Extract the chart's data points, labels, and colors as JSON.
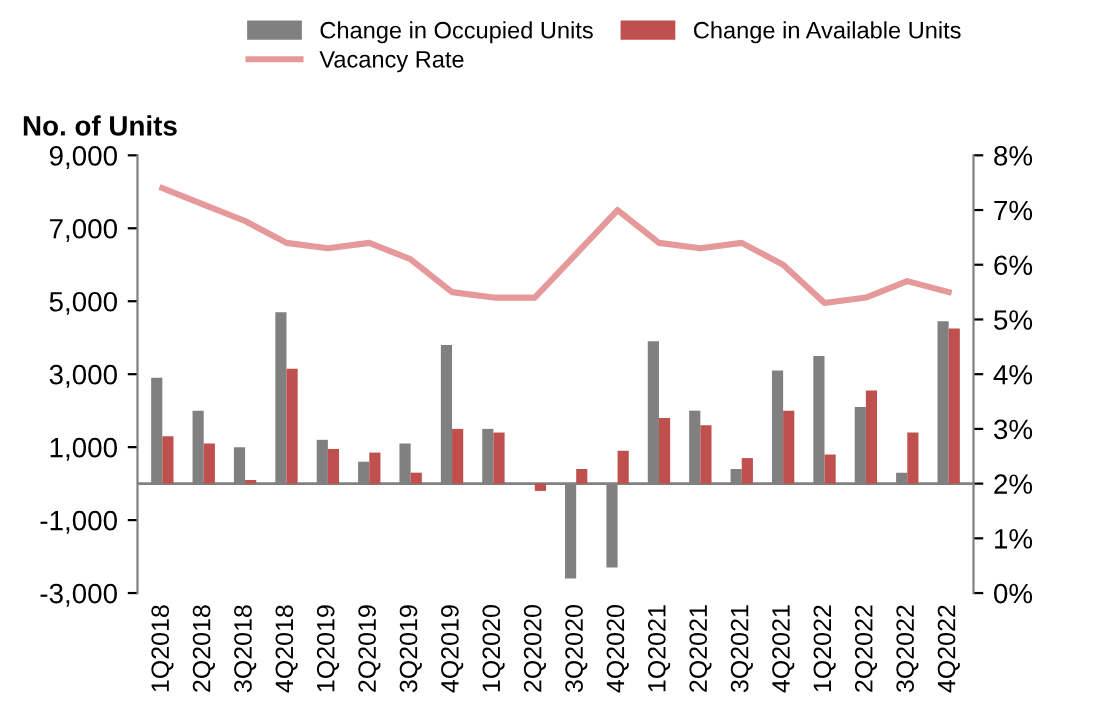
{
  "chart_data": {
    "type": "bar",
    "ylabel": "No. of Units",
    "categories": [
      "1Q2018",
      "2Q2018",
      "3Q2018",
      "4Q2018",
      "1Q2019",
      "2Q2019",
      "3Q2019",
      "4Q2019",
      "1Q2020",
      "2Q2020",
      "3Q2020",
      "4Q2020",
      "1Q2021",
      "2Q2021",
      "3Q2021",
      "4Q2021",
      "1Q2022",
      "2Q2022",
      "3Q2022",
      "4Q2022"
    ],
    "series": [
      {
        "name": "Change in Occupied Units",
        "color": "#808080",
        "values": [
          2900,
          2000,
          1000,
          4700,
          1200,
          600,
          1100,
          3800,
          1500,
          0,
          -2600,
          -2300,
          3900,
          2000,
          400,
          3100,
          3500,
          2100,
          300,
          4450
        ]
      },
      {
        "name": "Change in Available Units",
        "color": "#c0504d",
        "values": [
          1300,
          1100,
          100,
          3150,
          950,
          850,
          300,
          1500,
          1400,
          -200,
          400,
          900,
          1800,
          1600,
          700,
          2000,
          800,
          2550,
          1400,
          4250
        ]
      },
      {
        "name": "Vacancy Rate",
        "type": "line",
        "axis": "y2",
        "color": "#e6999a",
        "values": [
          7.4,
          7.1,
          6.8,
          6.4,
          6.3,
          6.4,
          6.1,
          5.5,
          5.4,
          5.4,
          6.2,
          7.0,
          6.4,
          6.3,
          6.4,
          6.0,
          5.3,
          5.4,
          5.7,
          5.5
        ]
      }
    ],
    "ylim": [
      -3000,
      9000
    ],
    "yticks": [
      {
        "value": -3000,
        "label": "-3,000"
      },
      {
        "value": -1000,
        "label": "-1,000"
      },
      {
        "value": 1000,
        "label": "1,000"
      },
      {
        "value": 3000,
        "label": "3,000"
      },
      {
        "value": 5000,
        "label": "5,000"
      },
      {
        "value": 7000,
        "label": "7,000"
      },
      {
        "value": 9000,
        "label": "9,000"
      }
    ],
    "y2lim": [
      0,
      8
    ],
    "y2ticks": [
      {
        "value": 0,
        "label": "0%"
      },
      {
        "value": 1,
        "label": "1%"
      },
      {
        "value": 2,
        "label": "2%"
      },
      {
        "value": 3,
        "label": "3%"
      },
      {
        "value": 4,
        "label": "4%"
      },
      {
        "value": 5,
        "label": "5%"
      },
      {
        "value": 6,
        "label": "6%"
      },
      {
        "value": 7,
        "label": "7%"
      },
      {
        "value": 8,
        "label": "8%"
      }
    ],
    "legend": "top"
  }
}
